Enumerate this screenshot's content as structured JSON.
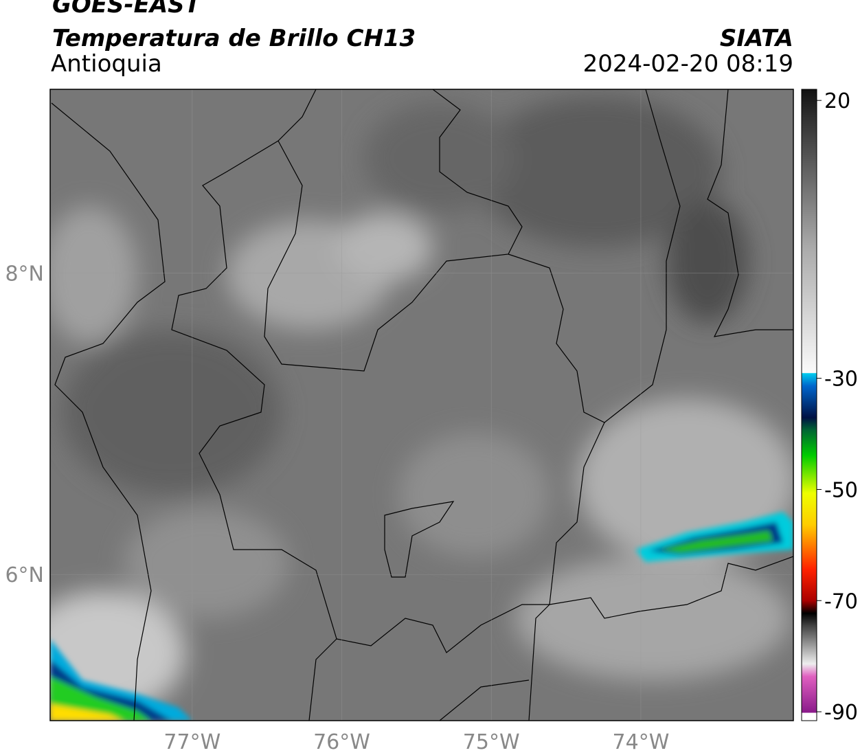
{
  "header": {
    "title": "GOES-EAST",
    "subtitle": "Temperatura de Brillo CH13",
    "region": "Antioquia",
    "source": "SIATA",
    "datetime": "2024-02-20 08:19"
  },
  "map": {
    "xlim": [
      -77.95,
      -72.98
    ],
    "ylim": [
      5.03,
      9.22
    ],
    "xticks": [
      {
        "value": -77,
        "label": "77°W"
      },
      {
        "value": -76,
        "label": "76°W"
      },
      {
        "value": -75,
        "label": "75°W"
      },
      {
        "value": -74,
        "label": "74°W"
      }
    ],
    "yticks": [
      {
        "value": 8,
        "label": "8°N"
      },
      {
        "value": 6,
        "label": "6°N"
      }
    ]
  },
  "colorbar": {
    "lim": [
      -91.6,
      22
    ],
    "ticks": [
      20,
      -30,
      -50,
      -70,
      -90
    ]
  }
}
